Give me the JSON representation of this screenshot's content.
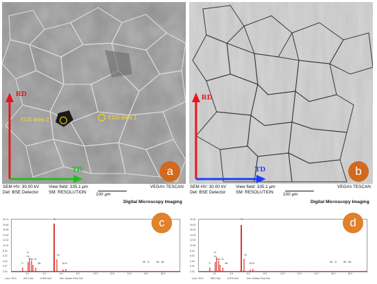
{
  "sem_panels": [
    {
      "panel_letter": "a",
      "rd_label": "RD",
      "td_label": "TD",
      "eds_areas": [
        "EDS area 2",
        "EDS area 1"
      ],
      "info": {
        "hv": "SEM HV: 30.00 kV",
        "det": "Det: BSE Detector",
        "view_field": "View field: 335.1 µm",
        "sm": "SM: RESOLUTION",
        "scale": "100 µm",
        "brand": "VEGA\\\\ TESCAN"
      }
    },
    {
      "panel_letter": "b",
      "rd_label": "RD",
      "td_label": "TD",
      "info": {
        "hv": "SEM HV: 30.00 kV",
        "det": "Det: BSE Detector",
        "view_field": "View field: 335.1 µm",
        "sm": "SM: RESOLUTION",
        "scale": "100 µm",
        "brand": "VEGA\\\\ TESCAN"
      }
    }
  ],
  "caption": "Digital Microscopy Imaging",
  "eds_panels": [
    {
      "panel_letter": "c",
      "y_ticks": [
        "20.74",
        "18.66",
        "16.59",
        "14.52",
        "12.44",
        "10.37",
        "8.30",
        "6.22",
        "4.15",
        "2.07",
        "0.00"
      ],
      "x_ticks": [
        "2.0",
        "4.0",
        "6.0",
        "8.0",
        "10.0",
        "12.0",
        "14.0",
        "16.0",
        "18.0"
      ],
      "footer": [
        "Lsec: 30.0",
        "429 Cnts",
        "6.600 keV",
        "Det: Octane Plus Det"
      ],
      "peak_labels": [
        "Ti",
        "Cr",
        "Fe",
        "Nb",
        "Zr",
        "Nb",
        "Ti",
        "Fe",
        "Ni",
        "Zr",
        "Nb",
        "Zr",
        "Nb",
        "Nb"
      ]
    },
    {
      "panel_letter": "d",
      "y_ticks": [
        "20.00",
        "18.00",
        "16.00",
        "14.00",
        "12.00",
        "10.00",
        "8.00",
        "6.00",
        "4.00",
        "2.00",
        "0.00"
      ],
      "x_ticks": [
        "2.0",
        "4.0",
        "6.0",
        "8.0",
        "10.0",
        "12.0",
        "14.0",
        "16.0",
        "18.0"
      ],
      "footer": [
        "Lsec: 30.0",
        "389 Cnts",
        "8.570 keV",
        "Det: Octane Plus Det"
      ],
      "peak_labels": [
        "Ti",
        "Cr",
        "Fe",
        "Nb",
        "Zr",
        "Nb",
        "Ti",
        "Fe",
        "Ni",
        "Zr",
        "Nb",
        "Zr",
        "Nb",
        "Nb"
      ]
    }
  ],
  "colors": {
    "rd_arrow": "#e8141a",
    "td_arrow_a": "#1fbe1f",
    "td_arrow_b": "#1a3cff",
    "eds_marker": "#ffe100",
    "panel_letter_bg": "#d2691e",
    "spectrum": "#d40000"
  }
}
